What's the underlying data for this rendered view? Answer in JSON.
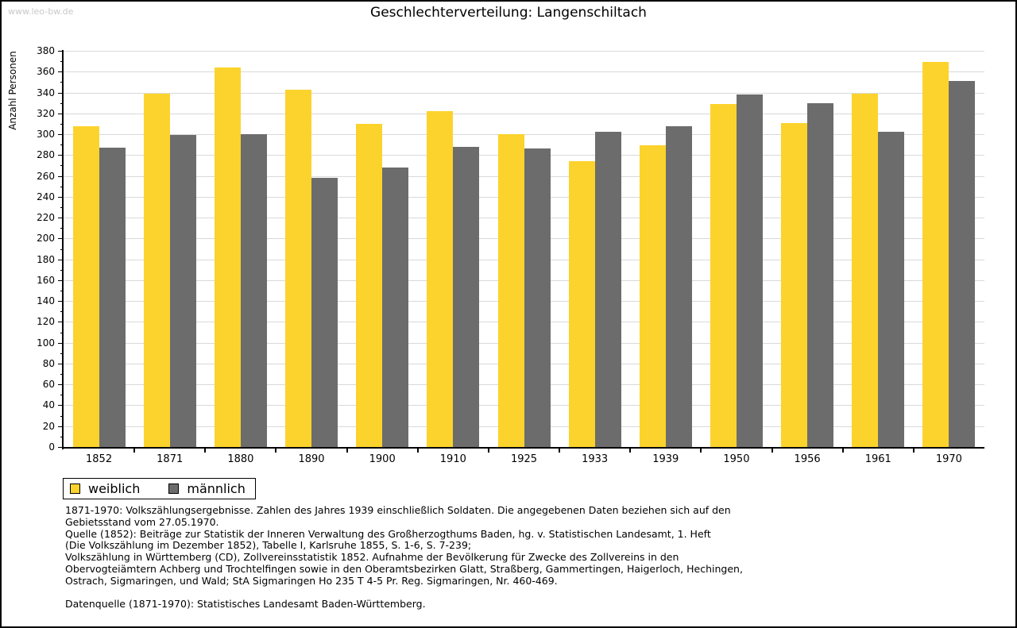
{
  "watermark": "www.leo-bw.de",
  "title": "Geschlechterverteilung: Langenschiltach",
  "colors": {
    "female": "#fcd32c",
    "male": "#6c6c6c",
    "grid": "#d9d9d9",
    "axis": "#000000",
    "watermark": "#c9c9c9"
  },
  "chart_data": {
    "type": "bar",
    "title": "Geschlechterverteilung: Langenschiltach",
    "xlabel": "",
    "ylabel": "Anzahl Personen",
    "ylim": [
      0,
      380
    ],
    "ytick_step": 20,
    "ytick_minor_step": 10,
    "grid": true,
    "legend_position": "bottom-left",
    "categories": [
      "1852",
      "1871",
      "1880",
      "1890",
      "1900",
      "1910",
      "1925",
      "1933",
      "1939",
      "1950",
      "1956",
      "1961",
      "1970"
    ],
    "series": [
      {
        "name": "weiblich",
        "color": "#fcd32c",
        "values": [
          308,
          339,
          364,
          343,
          310,
          322,
          300,
          274,
          289,
          329,
          311,
          339,
          369
        ]
      },
      {
        "name": "männlich",
        "color": "#6c6c6c",
        "values": [
          287,
          299,
          300,
          258,
          268,
          288,
          286,
          302,
          308,
          338,
          330,
          302,
          351
        ]
      }
    ]
  },
  "legend": {
    "items": [
      {
        "label": "weiblich",
        "color": "#fcd32c"
      },
      {
        "label": "männlich",
        "color": "#6c6c6c"
      }
    ]
  },
  "footer": {
    "lines": [
      "1871-1970: Volkszählungsergebnisse. Zahlen des Jahres 1939 einschließlich Soldaten. Die angegebenen Daten beziehen sich auf den",
      "Gebietsstand vom 27.05.1970.",
      "Quelle (1852): Beiträge zur Statistik der Inneren Verwaltung des Großherzogthums Baden, hg. v. Statistischen Landesamt, 1. Heft",
      "(Die Volkszählung im Dezember 1852), Tabelle I, Karlsruhe 1855, S. 1-6, S. 7-239;",
      "Volkszählung in Württemberg (CD), Zollvereinsstatistik 1852. Aufnahme der Bevölkerung für Zwecke des Zollvereins in den",
      "Obervogteiämtern Achberg und Trochtelfingen sowie in den Oberamtsbezirken Glatt, Straßberg, Gammertingen, Haigerloch, Hechingen,",
      "Ostrach, Sigmaringen, und Wald; StA Sigmaringen Ho 235 T 4-5 Pr. Reg. Sigmaringen, Nr. 460-469.",
      "",
      "Datenquelle (1871-1970): Statistisches Landesamt Baden-Württemberg."
    ]
  }
}
